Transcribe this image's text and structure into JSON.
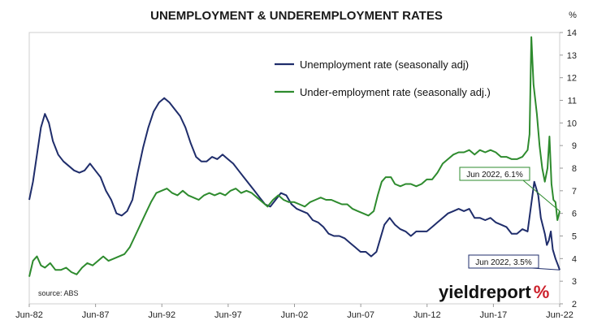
{
  "chart_data": {
    "type": "line",
    "title": "UNEMPLOYMENT & UNDEREMPLOYMENT RATES",
    "y_unit": "%",
    "ylim": [
      2,
      14
    ],
    "y_ticks": [
      2,
      3,
      4,
      5,
      6,
      7,
      8,
      9,
      10,
      11,
      12,
      13,
      14
    ],
    "xlim": [
      1982.42,
      2022.42
    ],
    "x_ticks": [
      {
        "label": "Jun-82",
        "value": 1982.42
      },
      {
        "label": "Jun-87",
        "value": 1987.42
      },
      {
        "label": "Jun-92",
        "value": 1992.42
      },
      {
        "label": "Jun-97",
        "value": 1997.42
      },
      {
        "label": "Jun-02",
        "value": 2002.42
      },
      {
        "label": "Jun-07",
        "value": 2007.42
      },
      {
        "label": "Jun-12",
        "value": 2012.42
      },
      {
        "label": "Jun-17",
        "value": 2017.42
      },
      {
        "label": "Jun-22",
        "value": 2022.42
      }
    ],
    "grid": false,
    "legend_position": "top-center",
    "series": [
      {
        "name": "Unemployment rate (seasonally adj)",
        "color": "#1f2d6b",
        "points": [
          [
            1982.42,
            6.6
          ],
          [
            1982.7,
            7.4
          ],
          [
            1983.0,
            8.6
          ],
          [
            1983.3,
            9.8
          ],
          [
            1983.6,
            10.4
          ],
          [
            1983.9,
            10.0
          ],
          [
            1984.2,
            9.2
          ],
          [
            1984.6,
            8.6
          ],
          [
            1985.0,
            8.3
          ],
          [
            1985.4,
            8.1
          ],
          [
            1985.8,
            7.9
          ],
          [
            1986.2,
            7.8
          ],
          [
            1986.6,
            7.9
          ],
          [
            1987.0,
            8.2
          ],
          [
            1987.4,
            7.9
          ],
          [
            1987.8,
            7.6
          ],
          [
            1988.2,
            7.0
          ],
          [
            1988.6,
            6.6
          ],
          [
            1989.0,
            6.0
          ],
          [
            1989.4,
            5.9
          ],
          [
            1989.8,
            6.1
          ],
          [
            1990.2,
            6.6
          ],
          [
            1990.6,
            7.8
          ],
          [
            1991.0,
            8.9
          ],
          [
            1991.4,
            9.8
          ],
          [
            1991.8,
            10.5
          ],
          [
            1992.2,
            10.9
          ],
          [
            1992.6,
            11.1
          ],
          [
            1993.0,
            10.9
          ],
          [
            1993.4,
            10.6
          ],
          [
            1993.8,
            10.3
          ],
          [
            1994.2,
            9.8
          ],
          [
            1994.6,
            9.1
          ],
          [
            1995.0,
            8.5
          ],
          [
            1995.4,
            8.3
          ],
          [
            1995.8,
            8.3
          ],
          [
            1996.2,
            8.5
          ],
          [
            1996.6,
            8.4
          ],
          [
            1997.0,
            8.6
          ],
          [
            1997.4,
            8.4
          ],
          [
            1997.8,
            8.2
          ],
          [
            1998.2,
            7.9
          ],
          [
            1998.6,
            7.6
          ],
          [
            1999.0,
            7.3
          ],
          [
            1999.4,
            7.0
          ],
          [
            1999.8,
            6.7
          ],
          [
            2000.2,
            6.4
          ],
          [
            2000.6,
            6.3
          ],
          [
            2001.0,
            6.6
          ],
          [
            2001.4,
            6.9
          ],
          [
            2001.8,
            6.8
          ],
          [
            2002.2,
            6.4
          ],
          [
            2002.6,
            6.2
          ],
          [
            2003.0,
            6.1
          ],
          [
            2003.4,
            6.0
          ],
          [
            2003.8,
            5.7
          ],
          [
            2004.2,
            5.6
          ],
          [
            2004.6,
            5.4
          ],
          [
            2005.0,
            5.1
          ],
          [
            2005.4,
            5.0
          ],
          [
            2005.8,
            5.0
          ],
          [
            2006.2,
            4.9
          ],
          [
            2006.6,
            4.7
          ],
          [
            2007.0,
            4.5
          ],
          [
            2007.4,
            4.3
          ],
          [
            2007.8,
            4.3
          ],
          [
            2008.2,
            4.1
          ],
          [
            2008.6,
            4.3
          ],
          [
            2008.9,
            4.9
          ],
          [
            2009.2,
            5.5
          ],
          [
            2009.6,
            5.8
          ],
          [
            2010.0,
            5.5
          ],
          [
            2010.4,
            5.3
          ],
          [
            2010.8,
            5.2
          ],
          [
            2011.2,
            5.0
          ],
          [
            2011.6,
            5.2
          ],
          [
            2012.0,
            5.2
          ],
          [
            2012.4,
            5.2
          ],
          [
            2012.8,
            5.4
          ],
          [
            2013.2,
            5.6
          ],
          [
            2013.6,
            5.8
          ],
          [
            2014.0,
            6.0
          ],
          [
            2014.4,
            6.1
          ],
          [
            2014.8,
            6.2
          ],
          [
            2015.2,
            6.1
          ],
          [
            2015.6,
            6.2
          ],
          [
            2016.0,
            5.8
          ],
          [
            2016.4,
            5.8
          ],
          [
            2016.8,
            5.7
          ],
          [
            2017.2,
            5.8
          ],
          [
            2017.6,
            5.6
          ],
          [
            2018.0,
            5.5
          ],
          [
            2018.4,
            5.4
          ],
          [
            2018.8,
            5.1
          ],
          [
            2019.2,
            5.1
          ],
          [
            2019.6,
            5.3
          ],
          [
            2020.0,
            5.2
          ],
          [
            2020.25,
            6.3
          ],
          [
            2020.5,
            7.4
          ],
          [
            2020.8,
            6.8
          ],
          [
            2021.0,
            5.8
          ],
          [
            2021.3,
            5.1
          ],
          [
            2021.45,
            4.6
          ],
          [
            2021.6,
            4.8
          ],
          [
            2021.75,
            5.2
          ],
          [
            2021.9,
            4.4
          ],
          [
            2022.1,
            4.0
          ],
          [
            2022.3,
            3.7
          ],
          [
            2022.42,
            3.5
          ]
        ]
      },
      {
        "name": "Under-employment rate (seasonally adj.)",
        "color": "#2e8b2e",
        "points": [
          [
            1982.42,
            3.2
          ],
          [
            1982.7,
            3.9
          ],
          [
            1983.0,
            4.1
          ],
          [
            1983.3,
            3.7
          ],
          [
            1983.6,
            3.6
          ],
          [
            1984.0,
            3.8
          ],
          [
            1984.4,
            3.5
          ],
          [
            1984.8,
            3.5
          ],
          [
            1985.2,
            3.6
          ],
          [
            1985.6,
            3.4
          ],
          [
            1986.0,
            3.3
          ],
          [
            1986.4,
            3.6
          ],
          [
            1986.8,
            3.8
          ],
          [
            1987.2,
            3.7
          ],
          [
            1987.6,
            3.9
          ],
          [
            1988.0,
            4.1
          ],
          [
            1988.4,
            3.9
          ],
          [
            1988.8,
            4.0
          ],
          [
            1989.2,
            4.1
          ],
          [
            1989.6,
            4.2
          ],
          [
            1990.0,
            4.5
          ],
          [
            1990.4,
            5.0
          ],
          [
            1990.8,
            5.5
          ],
          [
            1991.2,
            6.0
          ],
          [
            1991.6,
            6.5
          ],
          [
            1992.0,
            6.9
          ],
          [
            1992.4,
            7.0
          ],
          [
            1992.8,
            7.1
          ],
          [
            1993.2,
            6.9
          ],
          [
            1993.6,
            6.8
          ],
          [
            1994.0,
            7.0
          ],
          [
            1994.4,
            6.8
          ],
          [
            1994.8,
            6.7
          ],
          [
            1995.2,
            6.6
          ],
          [
            1995.6,
            6.8
          ],
          [
            1996.0,
            6.9
          ],
          [
            1996.4,
            6.8
          ],
          [
            1996.8,
            6.9
          ],
          [
            1997.2,
            6.8
          ],
          [
            1997.6,
            7.0
          ],
          [
            1998.0,
            7.1
          ],
          [
            1998.4,
            6.9
          ],
          [
            1998.8,
            7.0
          ],
          [
            1999.2,
            6.9
          ],
          [
            1999.6,
            6.7
          ],
          [
            2000.0,
            6.5
          ],
          [
            2000.4,
            6.3
          ],
          [
            2000.8,
            6.6
          ],
          [
            2001.2,
            6.8
          ],
          [
            2001.6,
            6.6
          ],
          [
            2002.0,
            6.5
          ],
          [
            2002.4,
            6.5
          ],
          [
            2002.8,
            6.4
          ],
          [
            2003.2,
            6.3
          ],
          [
            2003.6,
            6.5
          ],
          [
            2004.0,
            6.6
          ],
          [
            2004.4,
            6.7
          ],
          [
            2004.8,
            6.6
          ],
          [
            2005.2,
            6.6
          ],
          [
            2005.6,
            6.5
          ],
          [
            2006.0,
            6.4
          ],
          [
            2006.4,
            6.4
          ],
          [
            2006.8,
            6.2
          ],
          [
            2007.2,
            6.1
          ],
          [
            2007.6,
            6.0
          ],
          [
            2008.0,
            5.9
          ],
          [
            2008.4,
            6.1
          ],
          [
            2008.7,
            6.8
          ],
          [
            2009.0,
            7.4
          ],
          [
            2009.3,
            7.6
          ],
          [
            2009.7,
            7.6
          ],
          [
            2010.0,
            7.3
          ],
          [
            2010.4,
            7.2
          ],
          [
            2010.8,
            7.3
          ],
          [
            2011.2,
            7.3
          ],
          [
            2011.6,
            7.2
          ],
          [
            2012.0,
            7.3
          ],
          [
            2012.4,
            7.5
          ],
          [
            2012.8,
            7.5
          ],
          [
            2013.2,
            7.8
          ],
          [
            2013.6,
            8.2
          ],
          [
            2014.0,
            8.4
          ],
          [
            2014.4,
            8.6
          ],
          [
            2014.8,
            8.7
          ],
          [
            2015.2,
            8.7
          ],
          [
            2015.6,
            8.8
          ],
          [
            2016.0,
            8.6
          ],
          [
            2016.4,
            8.8
          ],
          [
            2016.8,
            8.7
          ],
          [
            2017.2,
            8.8
          ],
          [
            2017.6,
            8.7
          ],
          [
            2018.0,
            8.5
          ],
          [
            2018.4,
            8.5
          ],
          [
            2018.8,
            8.4
          ],
          [
            2019.2,
            8.4
          ],
          [
            2019.6,
            8.5
          ],
          [
            2020.0,
            8.8
          ],
          [
            2020.15,
            9.5
          ],
          [
            2020.28,
            13.8
          ],
          [
            2020.45,
            11.7
          ],
          [
            2020.7,
            10.4
          ],
          [
            2020.9,
            9.0
          ],
          [
            2021.1,
            8.0
          ],
          [
            2021.3,
            7.4
          ],
          [
            2021.5,
            8.0
          ],
          [
            2021.65,
            9.4
          ],
          [
            2021.8,
            7.3
          ],
          [
            2021.95,
            6.6
          ],
          [
            2022.1,
            6.5
          ],
          [
            2022.25,
            5.7
          ],
          [
            2022.42,
            6.1
          ]
        ]
      }
    ],
    "annotations": [
      {
        "text": "Jun 2022, 6.1%",
        "series": 1,
        "x": 2022.42,
        "y": 6.1
      },
      {
        "text": "Jun 2022, 3.5%",
        "series": 0,
        "x": 2022.42,
        "y": 3.5
      }
    ],
    "source": "source: ABS"
  },
  "brand": {
    "name": "yieldreport",
    "mark": "%",
    "mark_color": "#cc1f2a"
  }
}
